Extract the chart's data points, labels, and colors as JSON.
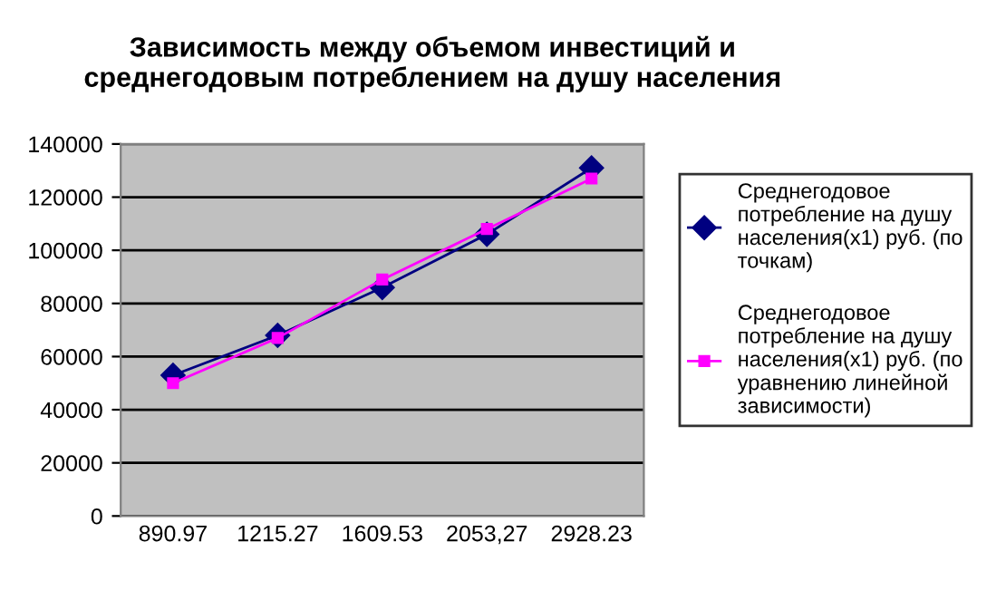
{
  "chart_data": {
    "type": "line",
    "title": "Зависимость между объемом инвестиций и\nсреднегодовым потреблением на душу населения",
    "categories": [
      "890.97",
      "1215.27",
      "1609.53",
      "2053,27",
      "2928.23"
    ],
    "series": [
      {
        "name": "Среднегодовое потребление на душу населения(х1) руб. (по точкам)",
        "color": "#000080",
        "marker": "diamond",
        "values": [
          53000,
          68000,
          86000,
          106000,
          131000
        ]
      },
      {
        "name": "Среднегодовое потребление на душу населения(х1) руб. (по уравнению линейной зависимости)",
        "color": "#ff00ff",
        "marker": "square",
        "values": [
          50000,
          67000,
          89000,
          108000,
          127000
        ]
      }
    ],
    "ylim": [
      0,
      140000
    ],
    "yticks": [
      0,
      20000,
      40000,
      60000,
      80000,
      100000,
      120000,
      140000
    ],
    "grid": "y",
    "legend": "right",
    "line_style": "solid"
  }
}
